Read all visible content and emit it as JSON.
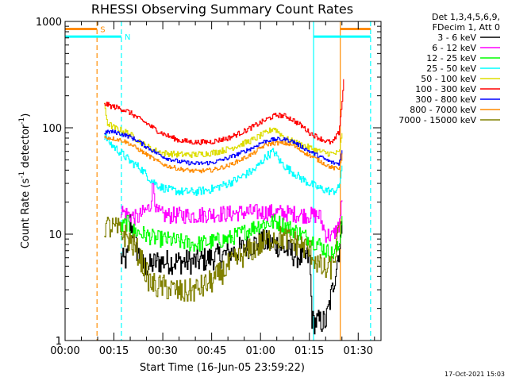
{
  "chart_data": {
    "type": "line",
    "title": "RHESSI Observing Summary Count Rates",
    "xlabel": "Start Time (16-Jun-05 23:59:22)",
    "ylabel_prefix": "Count Rate (s",
    "ylabel_sup1": "-1",
    "ylabel_mid": " detector",
    "ylabel_sup2": "-1",
    "ylabel_suffix": ")",
    "y_scale": "log",
    "ylim": [
      1,
      1000
    ],
    "xlim": [
      0,
      97
    ],
    "x_unit": "minutes since start",
    "x_ticks": [
      {
        "value": 0,
        "label": "00:00"
      },
      {
        "value": 15,
        "label": "00:15"
      },
      {
        "value": 30,
        "label": "00:30"
      },
      {
        "value": 45,
        "label": "00:45"
      },
      {
        "value": 60,
        "label": "01:00"
      },
      {
        "value": 75,
        "label": "01:15"
      },
      {
        "value": 90,
        "label": "01:30"
      }
    ],
    "y_ticks": [
      {
        "value": 1,
        "label": "1"
      },
      {
        "value": 10,
        "label": "10"
      },
      {
        "value": 100,
        "label": "100"
      },
      {
        "value": 1000,
        "label": "1000"
      }
    ],
    "legend_header": [
      "Det 1,3,4,5,6,9,",
      "FDecim 1, Att 0"
    ],
    "legend_position": "right",
    "series": [
      {
        "name": "3 - 6 keV",
        "color": "#000000",
        "noise": 0.12,
        "x": [
          17,
          18,
          19,
          19.5,
          20,
          21,
          22,
          23,
          24,
          26,
          28,
          30,
          35,
          40,
          45,
          50,
          55,
          60,
          65,
          70,
          73,
          75,
          75.8,
          77,
          80,
          82,
          84,
          85
        ],
        "y": [
          6,
          5.5,
          6,
          7,
          13,
          10,
          7,
          6,
          5,
          5,
          5.5,
          5.5,
          5.5,
          5.5,
          6,
          6.5,
          7.5,
          8.5,
          8,
          6.5,
          6,
          6,
          1.5,
          1.5,
          1.5,
          3,
          7,
          12
        ]
      },
      {
        "name": "6 - 12 keV",
        "color": "#ff00ff",
        "noise": 0.08,
        "x": [
          17,
          18,
          20,
          22,
          24,
          26,
          27,
          28,
          30,
          35,
          40,
          45,
          50,
          55,
          60,
          65,
          70,
          75,
          78,
          80,
          82,
          84,
          85
        ],
        "y": [
          17,
          16,
          15,
          14,
          16,
          18,
          30,
          16,
          15,
          15,
          15,
          15.5,
          15.5,
          16,
          16,
          16,
          15.5,
          15,
          15,
          10,
          9.5,
          12,
          20
        ]
      },
      {
        "name": "12 - 25 keV",
        "color": "#00ff00",
        "noise": 0.08,
        "x": [
          17,
          18,
          19,
          20,
          22,
          24,
          26,
          28,
          30,
          35,
          40,
          45,
          50,
          55,
          60,
          65,
          70,
          75,
          78,
          80,
          82,
          84,
          85
        ],
        "y": [
          11,
          12,
          13,
          11,
          10.5,
          10,
          9.5,
          9,
          9,
          8.5,
          8,
          8.5,
          9,
          10.5,
          12.5,
          13,
          11,
          9,
          8,
          7,
          6.5,
          7.5,
          15
        ]
      },
      {
        "name": "25 - 50 keV",
        "color": "#00ffff",
        "noise": 0.04,
        "x": [
          12,
          14,
          16,
          18,
          20,
          23,
          26,
          29,
          32,
          36,
          40,
          45,
          50,
          53,
          55,
          58,
          60,
          62,
          64,
          66,
          68,
          70,
          72,
          75,
          78,
          80,
          82,
          84,
          85
        ],
        "y": [
          85,
          70,
          62,
          55,
          48,
          42,
          33,
          28,
          26,
          25,
          25,
          26.5,
          30,
          33,
          36,
          40,
          47,
          55,
          60,
          48,
          42,
          38,
          34,
          30,
          27,
          26,
          25,
          27,
          45
        ]
      },
      {
        "name": "50 - 100 keV",
        "color": "#dddd00",
        "noise": 0.03,
        "x": [
          12,
          13,
          15,
          17,
          19,
          21,
          24,
          27,
          30,
          35,
          40,
          45,
          50,
          55,
          58,
          60,
          62,
          64,
          66,
          68,
          70,
          72,
          75,
          78,
          80,
          82,
          84,
          85
        ],
        "y": [
          160,
          110,
          100,
          95,
          90,
          82,
          70,
          62,
          58,
          56,
          56,
          58,
          63,
          72,
          78,
          85,
          90,
          100,
          88,
          78,
          74,
          70,
          65,
          60,
          58,
          57,
          58,
          85
        ]
      },
      {
        "name": "100 - 300 keV",
        "color": "#ff0000",
        "noise": 0.025,
        "x": [
          12,
          14,
          16,
          18,
          20,
          22,
          25,
          28,
          31,
          35,
          40,
          45,
          50,
          55,
          60,
          63,
          65,
          68,
          70,
          73,
          75,
          78,
          80,
          82,
          84,
          85,
          85.5
        ],
        "y": [
          170,
          160,
          155,
          148,
          138,
          125,
          110,
          95,
          85,
          76,
          73,
          74,
          80,
          93,
          112,
          125,
          132,
          128,
          118,
          102,
          90,
          80,
          75,
          72,
          90,
          180,
          280
        ]
      },
      {
        "name": "300 - 800 keV",
        "color": "#0000ff",
        "noise": 0.02,
        "x": [
          12,
          14,
          16,
          18,
          20,
          22,
          25,
          28,
          31,
          35,
          40,
          45,
          50,
          55,
          58,
          60,
          62,
          65,
          68,
          70,
          72,
          75,
          78,
          80,
          82,
          84,
          85
        ],
        "y": [
          90,
          92,
          90,
          86,
          82,
          76,
          66,
          58,
          52,
          48,
          46,
          47,
          52,
          60,
          66,
          72,
          76,
          78,
          77,
          74,
          68,
          60,
          54,
          50,
          47,
          46,
          60
        ]
      },
      {
        "name": "800 - 7000 keV",
        "color": "#ff8c00",
        "noise": 0.02,
        "x": [
          12,
          14,
          16,
          18,
          20,
          22,
          25,
          28,
          31,
          35,
          40,
          45,
          50,
          55,
          58,
          60,
          62,
          65,
          68,
          70,
          72,
          75,
          78,
          80,
          82,
          84,
          85
        ],
        "y": [
          82,
          80,
          78,
          75,
          70,
          64,
          56,
          49,
          44,
          41,
          39,
          40,
          44,
          52,
          58,
          65,
          70,
          72,
          71,
          68,
          62,
          55,
          49,
          45,
          42,
          41,
          55
        ]
      },
      {
        "name": "7000 - 15000 keV",
        "color": "#808000",
        "noise": 0.12,
        "x": [
          12,
          14,
          16,
          18,
          20,
          22,
          24,
          26,
          28,
          30,
          33,
          36,
          40,
          43,
          46,
          50,
          55,
          60,
          64,
          68,
          72,
          75,
          78,
          80,
          82,
          84
        ],
        "y": [
          12,
          11.5,
          11,
          10,
          8.5,
          7,
          5,
          3.5,
          3.2,
          3.2,
          3,
          2.8,
          3,
          3.3,
          3.8,
          5,
          6.5,
          8,
          9.5,
          9,
          8,
          7,
          5,
          4.5,
          5,
          10
        ]
      }
    ],
    "markers": [
      {
        "x": 9.8,
        "color": "#ff8c00",
        "style": "dashed"
      },
      {
        "x": 17.3,
        "color": "#00ffff",
        "style": "dashed"
      },
      {
        "x": 76.3,
        "color": "#00ffff",
        "style": "solid"
      },
      {
        "x": 84.5,
        "color": "#ff8c00",
        "style": "solid"
      },
      {
        "x": 93.8,
        "color": "#00ffff",
        "style": "dashed"
      }
    ],
    "bars": [
      {
        "x_start": 0,
        "x_end": 9.8,
        "y": 850,
        "color": "#ff8c00",
        "label": "S"
      },
      {
        "x_start": 0,
        "x_end": 17.3,
        "y": 720,
        "color": "#00ffff",
        "label": "N"
      },
      {
        "x_start": 84.5,
        "x_end": 93.8,
        "y": 850,
        "color": "#ff8c00",
        "label": ""
      },
      {
        "x_start": 76.3,
        "x_end": 93.8,
        "y": 720,
        "color": "#00ffff",
        "label": ""
      }
    ],
    "footer_stamp": "17-Oct-2021 15:03"
  }
}
